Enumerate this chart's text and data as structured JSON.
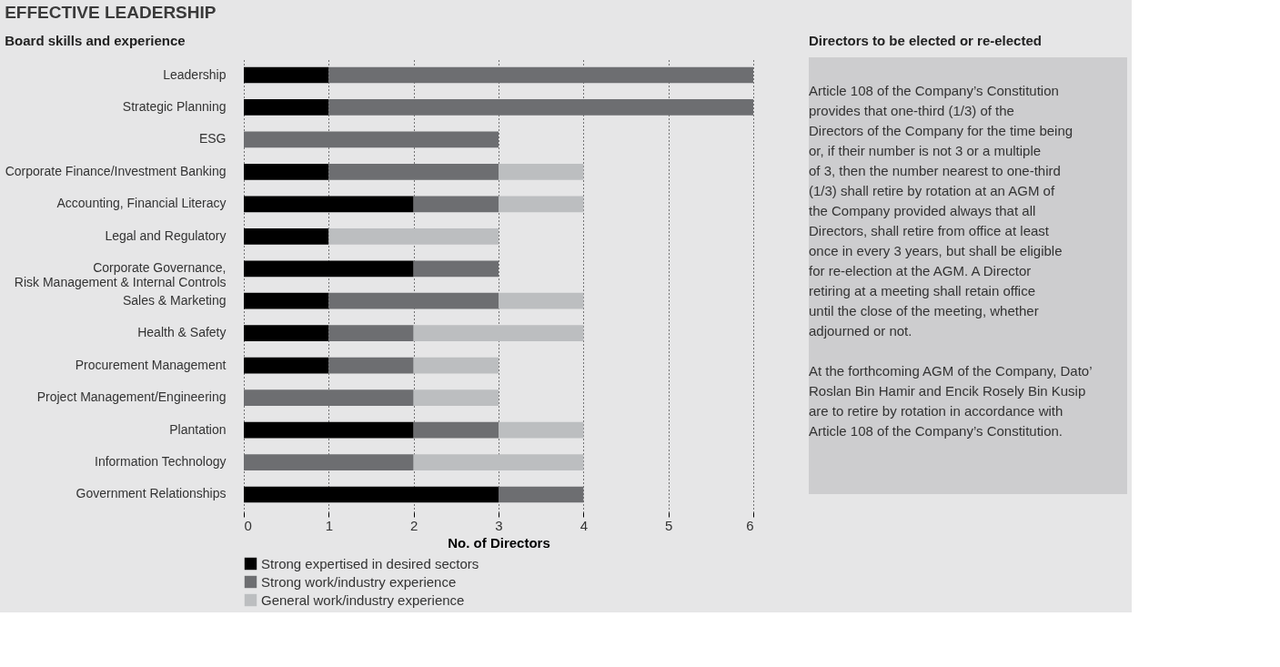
{
  "chart_data": [
    {
      "type": "bar",
      "orientation": "horizontal",
      "stacked": true,
      "title": "EFFECTIVE LEADERSHIP",
      "subtitle": "Board skills and experience",
      "xlabel": "No. of Directors",
      "categories": [
        "Leadership",
        "Strategic Planning",
        "ESG",
        "Corporate Finance/Investment Banking",
        "Accounting, Financial Literacy",
        "Legal and Regulatory",
        "Corporate Governance,\nRisk Management & Internal Controls",
        "Sales & Marketing",
        "Health & Safety",
        "Procurement Management",
        "Project Management/Engineering",
        "Plantation",
        "Information Technology",
        "Government Relationships"
      ],
      "series": [
        {
          "name": "Strong expertised in desired sectors",
          "color": "#000000",
          "values": [
            1,
            1,
            0,
            1,
            2,
            1,
            2,
            1,
            1,
            1,
            0,
            2,
            0,
            3
          ]
        },
        {
          "name": "Strong work/industry experience",
          "color": "#6d6e71",
          "values": [
            5,
            5,
            3,
            2,
            1,
            0,
            1,
            2,
            1,
            1,
            2,
            1,
            2,
            1
          ]
        },
        {
          "name": "General work/industry experience",
          "color": "#bcbec0",
          "values": [
            0,
            0,
            0,
            1,
            1,
            2,
            0,
            1,
            2,
            1,
            1,
            1,
            2,
            0
          ]
        }
      ],
      "xlim": [
        0,
        6
      ],
      "xticks": [
        0,
        1,
        2,
        3,
        4,
        5,
        6
      ],
      "grid": "x",
      "legend": "bottom left"
    },
    {
      "type": "other",
      "title": "Directors to be elected or re-elected",
      "annotations": [
        "Article 108 of the Company’s Constitution provides that one-third (1/3) of the Directors of the Company for the time being or, if their number is not 3 or a multiple of 3, then the number nearest to one-third (1/3) shall retire by rotation at an AGM of the Company provided always that all Directors, shall retire from office at least once in every 3 years, but shall be eligible for re-election at the AGM. A Director retiring at a meeting shall retain office until the close of the meeting, whether adjourned or not.",
        "At the forthcoming AGM of the Company, Dato’ Roslan Bin Hamir and Encik Rosely Bin Kusip are to retire by rotation in accordance with Article 108 of the Company’s Constitution."
      ]
    }
  ]
}
